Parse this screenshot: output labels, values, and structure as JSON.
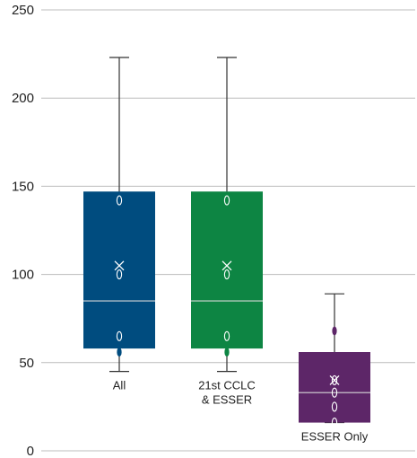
{
  "chart_data": {
    "type": "box",
    "title": "",
    "xlabel": "",
    "ylabel": "",
    "ylim": [
      0,
      250
    ],
    "yticks": [
      0,
      50,
      100,
      150,
      200,
      250
    ],
    "grid": "horizontal",
    "legend": "none",
    "boxes": [
      {
        "label_lines": [
          "All"
        ],
        "min": 45,
        "q1": 58,
        "median": 85,
        "q3": 147,
        "max": 223,
        "mean": 105,
        "points": [
          56,
          56,
          65,
          100,
          142
        ],
        "color": "#004c7f"
      },
      {
        "label_lines": [
          "21st CCLC",
          "& ESSER"
        ],
        "min": 45,
        "q1": 58,
        "median": 85,
        "q3": 147,
        "max": 223,
        "mean": 105,
        "points": [
          56,
          56,
          65,
          100,
          142
        ],
        "color": "#0d8543"
      },
      {
        "label_lines": [
          "ESSER Only"
        ],
        "min": 16,
        "q1": 16,
        "median": 33,
        "q3": 56,
        "max": 89,
        "mean": 40,
        "points": [
          16,
          25,
          33,
          40,
          68
        ],
        "color": "#5d2668"
      }
    ]
  },
  "colors": {
    "grid": "#bcbcbc",
    "whisker": "#333333",
    "median_line": "#d9d9d9",
    "marker": "#ffffff"
  }
}
